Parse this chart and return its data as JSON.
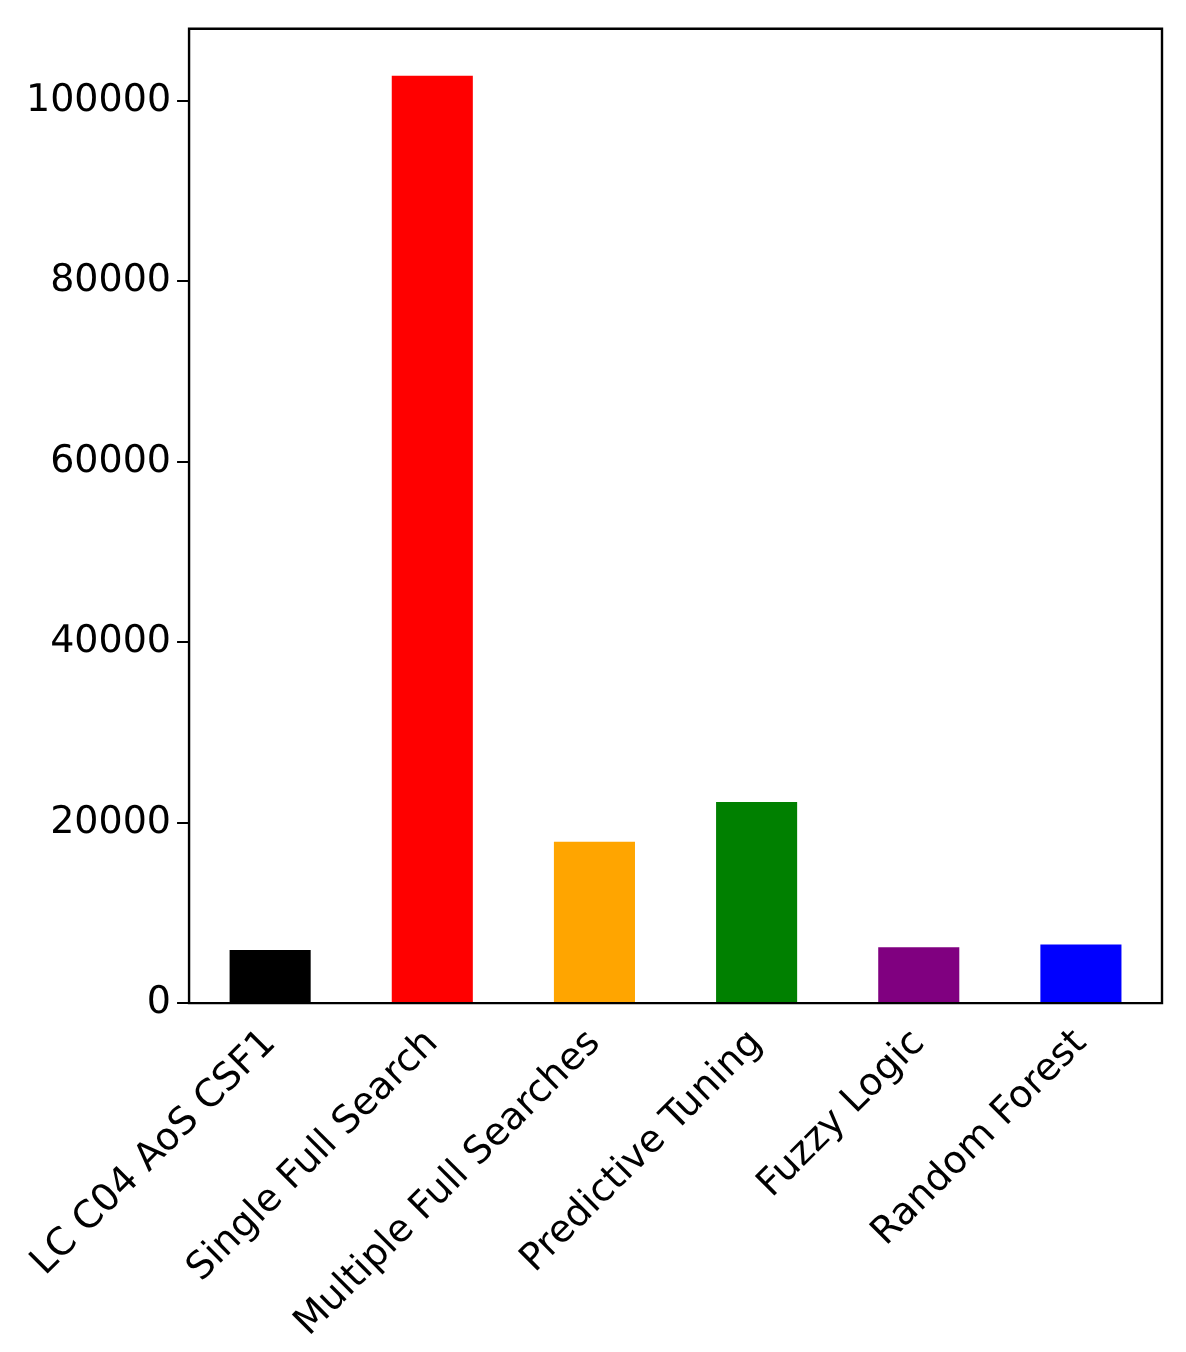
{
  "chart_data": {
    "type": "bar",
    "categories": [
      "LC C04 AoS CSF1",
      "Single Full Search",
      "Multiple Full Searches",
      "Predictive Tuning",
      "Fuzzy Logic",
      "Random Forest"
    ],
    "values": [
      5900,
      102800,
      17900,
      22300,
      6200,
      6500
    ],
    "colors": [
      "#000000",
      "#ff0000",
      "#ffa500",
      "#008000",
      "#800080",
      "#0000ff"
    ],
    "ylim": [
      0,
      108000
    ],
    "yticks": [
      0,
      20000,
      40000,
      60000,
      80000,
      100000
    ],
    "grid": false,
    "legend": false
  }
}
